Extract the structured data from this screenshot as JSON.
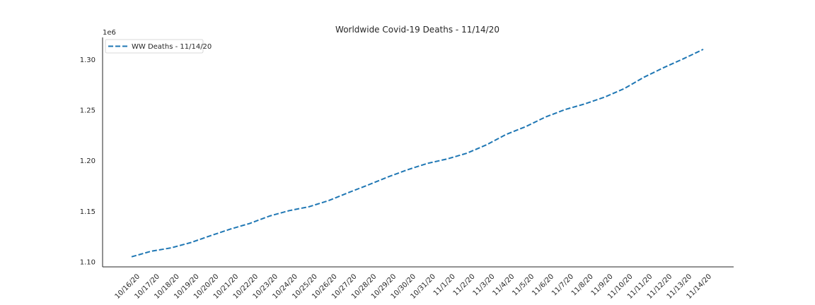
{
  "chart_data": {
    "type": "line",
    "title": "Worldwide Covid-19 Deaths - 11/14/20",
    "xlabel": "",
    "ylabel": "",
    "y_offset_label": "1e6",
    "x": [
      "10/16/20",
      "10/17/20",
      "10/18/20",
      "10/19/20",
      "10/20/20",
      "10/21/20",
      "10/22/20",
      "10/23/20",
      "10/24/20",
      "10/25/20",
      "10/26/20",
      "10/27/20",
      "10/28/20",
      "10/29/20",
      "10/30/20",
      "10/31/20",
      "11/1/20",
      "11/2/20",
      "11/3/20",
      "11/4/20",
      "11/5/20",
      "11/6/20",
      "11/7/20",
      "11/8/20",
      "11/9/20",
      "11/10/20",
      "11/11/20",
      "11/12/20",
      "11/13/20",
      "11/14/20"
    ],
    "series": [
      {
        "name": "WW Deaths - 11/14/20",
        "color": "#1f77b4",
        "style": "dashed",
        "values": [
          1105000,
          1110500,
          1113800,
          1119000,
          1125800,
          1132300,
          1138000,
          1145300,
          1150700,
          1154500,
          1160600,
          1168500,
          1176000,
          1183900,
          1191100,
          1197300,
          1201700,
          1207400,
          1215700,
          1226000,
          1233800,
          1243300,
          1250700,
          1256300,
          1263000,
          1271400,
          1282700,
          1292200,
          1300900,
          1310200
        ]
      }
    ],
    "ylim": [
      1095000,
      1322000
    ],
    "yticks": [
      1.1,
      1.15,
      1.2,
      1.25,
      1.3
    ],
    "ytick_labels": [
      "1.10",
      "1.15",
      "1.20",
      "1.25",
      "1.30"
    ],
    "grid": false,
    "legend_position": "upper-left"
  }
}
